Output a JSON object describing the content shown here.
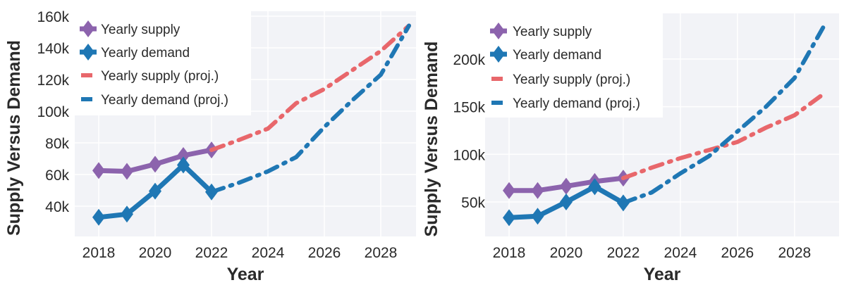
{
  "colors": {
    "supply": "#8c63ad",
    "demand": "#1f77b4",
    "supply_proj": "#e8676b",
    "demand_proj": "#1f77b4",
    "plot_bg": "#f2f3f7",
    "grid": "#ffffff"
  },
  "chart_data": [
    {
      "type": "line",
      "title": "",
      "xlabel": "Year",
      "ylabel": "Supply Versus Demand",
      "xlim": [
        2017.15,
        2029.25
      ],
      "ylim": [
        20900,
        163100
      ],
      "xticks": [
        2018,
        2020,
        2022,
        2024,
        2026,
        2028
      ],
      "xtick_labels": [
        "2018",
        "2020",
        "2022",
        "2024",
        "2026",
        "2028"
      ],
      "yticks": [
        40000,
        60000,
        80000,
        100000,
        120000,
        140000,
        160000
      ],
      "ytick_labels": [
        "40k",
        "60k",
        "80k",
        "100k",
        "120k",
        "140k",
        "160k"
      ],
      "grid": true,
      "legend_position": "top-left",
      "series": [
        {
          "name": "Yearly supply",
          "style": "solid-diamond",
          "color_key": "supply",
          "x": [
            2018,
            2019,
            2020,
            2021,
            2022
          ],
          "values": [
            62500,
            62000,
            66500,
            72000,
            75500
          ]
        },
        {
          "name": "Yearly demand",
          "style": "solid-diamond",
          "color_key": "demand",
          "x": [
            2018,
            2019,
            2020,
            2021,
            2022
          ],
          "values": [
            33000,
            35000,
            49500,
            66000,
            49000
          ]
        },
        {
          "name": "Yearly supply (proj.)",
          "style": "dashdot",
          "color_key": "supply_proj",
          "x": [
            2022,
            2023,
            2024,
            2025,
            2026,
            2027,
            2028,
            2029
          ],
          "values": [
            75500,
            82000,
            89000,
            105000,
            114000,
            126000,
            138000,
            154000
          ]
        },
        {
          "name": "Yearly demand (proj.)",
          "style": "dashdot",
          "color_key": "demand_proj",
          "x": [
            2022,
            2023,
            2024,
            2025,
            2026,
            2027,
            2028,
            2029
          ],
          "values": [
            49000,
            55000,
            62000,
            71000,
            90000,
            107000,
            123000,
            154000
          ]
        }
      ]
    },
    {
      "type": "line",
      "title": "",
      "xlabel": "Year",
      "ylabel": "Supply Versus Demand",
      "xlim": [
        2017.16,
        2029.56
      ],
      "ylim": [
        13800,
        247900
      ],
      "xticks": [
        2018,
        2020,
        2022,
        2024,
        2026,
        2028
      ],
      "xtick_labels": [
        "2018",
        "2020",
        "2022",
        "2024",
        "2026",
        "2028"
      ],
      "yticks": [
        50000,
        100000,
        150000,
        200000
      ],
      "ytick_labels": [
        "50k",
        "100k",
        "150k",
        "200k"
      ],
      "grid": true,
      "legend_position": "top-left",
      "series": [
        {
          "name": "Yearly supply",
          "style": "solid-diamond",
          "color_key": "supply",
          "x": [
            2018,
            2019,
            2020,
            2021,
            2022
          ],
          "values": [
            62000,
            62000,
            66500,
            71500,
            75000
          ]
        },
        {
          "name": "Yearly demand",
          "style": "solid-diamond",
          "color_key": "demand",
          "x": [
            2018,
            2019,
            2020,
            2021,
            2022
          ],
          "values": [
            33500,
            35000,
            50000,
            66000,
            49000
          ]
        },
        {
          "name": "Yearly supply (proj.)",
          "style": "dashdot",
          "color_key": "supply_proj",
          "x": [
            2022,
            2023,
            2024,
            2025,
            2026,
            2027,
            2028,
            2029
          ],
          "values": [
            75000,
            86000,
            96000,
            104500,
            113000,
            128000,
            141000,
            163000
          ]
        },
        {
          "name": "Yearly demand (proj.)",
          "style": "dashdot",
          "color_key": "demand_proj",
          "x": [
            2022,
            2023,
            2024,
            2025,
            2026,
            2027,
            2028,
            2029
          ],
          "values": [
            49000,
            60000,
            80000,
            98000,
            124000,
            150000,
            180000,
            233000
          ]
        }
      ]
    }
  ]
}
